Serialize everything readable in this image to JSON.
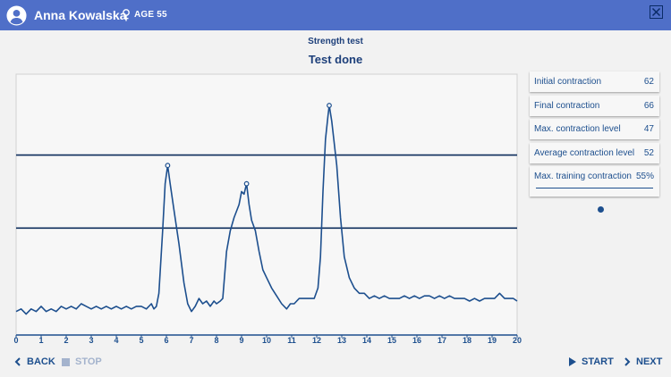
{
  "header": {
    "patient_name": "Anna Kowalska",
    "age_label": "AGE 55",
    "gender_icon": "female-icon",
    "background_color": "#4f6fc8"
  },
  "test": {
    "subtitle": "Strength test",
    "status": "Test done"
  },
  "stats": [
    {
      "label": "Initial contraction",
      "value": "62"
    },
    {
      "label": "Final contraction",
      "value": "66"
    },
    {
      "label": "Max. contraction level",
      "value": "47"
    },
    {
      "label": "Average contraction level",
      "value": "52"
    }
  ],
  "training": {
    "label": "Max. training contraction",
    "value": "55%",
    "slider_fraction": 0.55
  },
  "footer": {
    "back_label": "BACK",
    "stop_label": "STOP",
    "start_label": "START",
    "next_label": "NEXT"
  },
  "chart_data": {
    "type": "line",
    "x_ticks": [
      "0",
      "1",
      "2",
      "3",
      "4",
      "5",
      "6",
      "7",
      "8",
      "9",
      "10",
      "11",
      "12",
      "13",
      "14",
      "15",
      "16",
      "17",
      "18",
      "19",
      "20"
    ],
    "xlim": [
      0,
      20
    ],
    "ylim": [
      0,
      100
    ],
    "grid": false,
    "reference_lines": [
      69,
      41
    ],
    "peak_markers": [
      [
        6.05,
        65
      ],
      [
        9.2,
        58
      ],
      [
        12.5,
        88
      ]
    ],
    "series": [
      {
        "values": [
          [
            0,
            9
          ],
          [
            0.2,
            10
          ],
          [
            0.4,
            8
          ],
          [
            0.6,
            10
          ],
          [
            0.8,
            9
          ],
          [
            1.0,
            11
          ],
          [
            1.2,
            9
          ],
          [
            1.4,
            10
          ],
          [
            1.6,
            9
          ],
          [
            1.8,
            11
          ],
          [
            2.0,
            10
          ],
          [
            2.2,
            11
          ],
          [
            2.4,
            10
          ],
          [
            2.6,
            12
          ],
          [
            2.8,
            11
          ],
          [
            3.0,
            10
          ],
          [
            3.2,
            11
          ],
          [
            3.4,
            10
          ],
          [
            3.6,
            11
          ],
          [
            3.8,
            10
          ],
          [
            4.0,
            11
          ],
          [
            4.2,
            10
          ],
          [
            4.4,
            11
          ],
          [
            4.6,
            10
          ],
          [
            4.8,
            11
          ],
          [
            5.0,
            11
          ],
          [
            5.2,
            10
          ],
          [
            5.4,
            12
          ],
          [
            5.5,
            10
          ],
          [
            5.6,
            11
          ],
          [
            5.7,
            16
          ],
          [
            5.85,
            40
          ],
          [
            5.95,
            58
          ],
          [
            6.05,
            65
          ],
          [
            6.15,
            58
          ],
          [
            6.3,
            48
          ],
          [
            6.5,
            35
          ],
          [
            6.7,
            20
          ],
          [
            6.85,
            12
          ],
          [
            7.0,
            9
          ],
          [
            7.15,
            11
          ],
          [
            7.3,
            14
          ],
          [
            7.45,
            12
          ],
          [
            7.6,
            13
          ],
          [
            7.75,
            11
          ],
          [
            7.9,
            13
          ],
          [
            8.0,
            12
          ],
          [
            8.15,
            13
          ],
          [
            8.25,
            14
          ],
          [
            8.4,
            32
          ],
          [
            8.55,
            40
          ],
          [
            8.7,
            45
          ],
          [
            8.9,
            50
          ],
          [
            9.0,
            55
          ],
          [
            9.1,
            54
          ],
          [
            9.2,
            58
          ],
          [
            9.3,
            50
          ],
          [
            9.4,
            44
          ],
          [
            9.55,
            40
          ],
          [
            9.7,
            32
          ],
          [
            9.85,
            25
          ],
          [
            10.0,
            22
          ],
          [
            10.2,
            18
          ],
          [
            10.4,
            15
          ],
          [
            10.6,
            12
          ],
          [
            10.8,
            10
          ],
          [
            10.95,
            12
          ],
          [
            11.1,
            12
          ],
          [
            11.3,
            14
          ],
          [
            11.6,
            14
          ],
          [
            11.9,
            14
          ],
          [
            12.05,
            18
          ],
          [
            12.15,
            30
          ],
          [
            12.25,
            55
          ],
          [
            12.35,
            75
          ],
          [
            12.45,
            84
          ],
          [
            12.5,
            88
          ],
          [
            12.6,
            82
          ],
          [
            12.8,
            65
          ],
          [
            12.95,
            45
          ],
          [
            13.1,
            30
          ],
          [
            13.3,
            22
          ],
          [
            13.5,
            18
          ],
          [
            13.7,
            16
          ],
          [
            13.9,
            16
          ],
          [
            14.1,
            14
          ],
          [
            14.3,
            15
          ],
          [
            14.5,
            14
          ],
          [
            14.7,
            15
          ],
          [
            14.9,
            14
          ],
          [
            15.1,
            14
          ],
          [
            15.3,
            14
          ],
          [
            15.5,
            15
          ],
          [
            15.7,
            14
          ],
          [
            15.9,
            15
          ],
          [
            16.1,
            14
          ],
          [
            16.3,
            15
          ],
          [
            16.5,
            15
          ],
          [
            16.7,
            14
          ],
          [
            16.9,
            15
          ],
          [
            17.1,
            14
          ],
          [
            17.3,
            15
          ],
          [
            17.5,
            14
          ],
          [
            17.7,
            14
          ],
          [
            17.9,
            14
          ],
          [
            18.1,
            13
          ],
          [
            18.3,
            14
          ],
          [
            18.5,
            13
          ],
          [
            18.7,
            14
          ],
          [
            18.9,
            14
          ],
          [
            19.1,
            14
          ],
          [
            19.3,
            16
          ],
          [
            19.5,
            14
          ],
          [
            19.7,
            14
          ],
          [
            19.85,
            14
          ],
          [
            20,
            13
          ]
        ]
      }
    ]
  }
}
